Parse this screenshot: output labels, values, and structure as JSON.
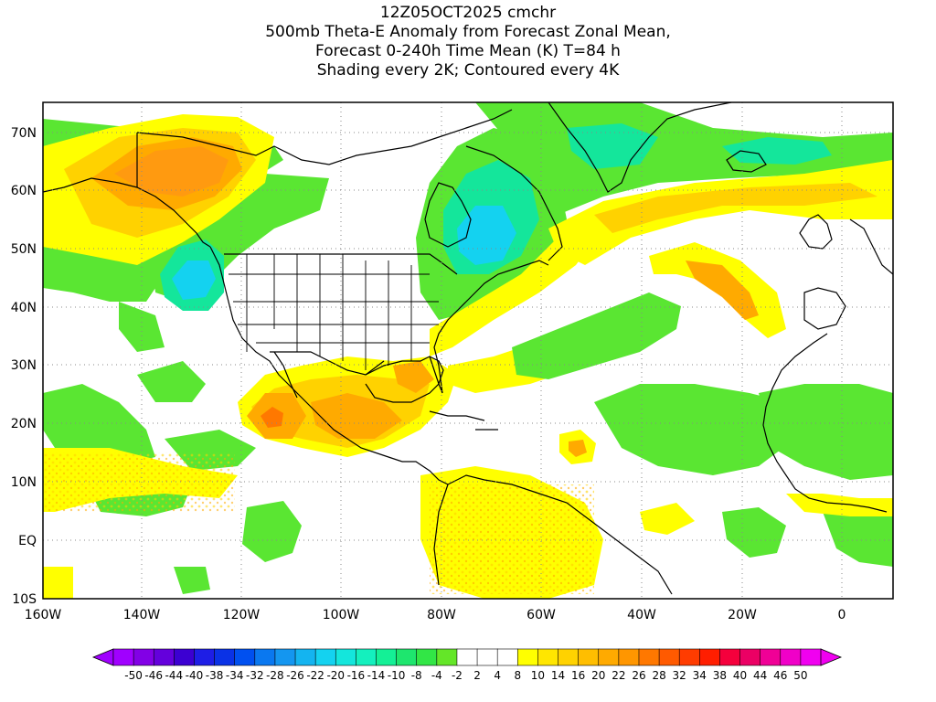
{
  "title": {
    "line1": "12Z05OCT2025 cmchr",
    "line2": "500mb Theta-E Anomaly from Forecast Zonal Mean,",
    "line3": "Forecast 0-240h Time Mean (K) T=84 h",
    "line4": "Shading every 2K; Contoured every 4K"
  },
  "axes": {
    "lat_labels": [
      "70N",
      "60N",
      "50N",
      "40N",
      "30N",
      "20N",
      "10N",
      "EQ",
      "10S"
    ],
    "lon_labels": [
      "160W",
      "140W",
      "120W",
      "100W",
      "80W",
      "60W",
      "40W",
      "20W",
      "0"
    ]
  },
  "colorbar": {
    "labels": [
      "-50",
      "-46",
      "-44",
      "-40",
      "-38",
      "-34",
      "-32",
      "-28",
      "-26",
      "-22",
      "-20",
      "-16",
      "-14",
      "-10",
      "-8",
      "-4",
      "-2",
      "2",
      "4",
      "8",
      "10",
      "14",
      "16",
      "20",
      "22",
      "26",
      "28",
      "32",
      "34",
      "38",
      "40",
      "44",
      "46",
      "50"
    ],
    "colors": [
      "#a000ff",
      "#8200e6",
      "#6400dc",
      "#3c00d2",
      "#1e1ee6",
      "#0a32e6",
      "#0050f0",
      "#0a78f0",
      "#1496f0",
      "#14b4f0",
      "#14d2f0",
      "#14e6dc",
      "#14f0be",
      "#14f096",
      "#1ee66e",
      "#32e646",
      "#64e628",
      "#ffffff",
      "#ffffff",
      "#ffffff",
      "#ffff00",
      "#ffe600",
      "#ffd200",
      "#ffbe00",
      "#ffaa00",
      "#ff9600",
      "#ff7800",
      "#ff5a00",
      "#ff3c00",
      "#ff1e00",
      "#f5003c",
      "#eb0064",
      "#f00096",
      "#f000c8",
      "#f000f0"
    ]
  },
  "map_colors": {
    "green": "#5ae632",
    "teal": "#14e69b",
    "cyan": "#14d2f0",
    "yellow": "#ffff00",
    "gold": "#ffd200",
    "orange": "#ffaa00",
    "dark_orange": "#ff8c00",
    "red_orange": "#ff5a00"
  }
}
